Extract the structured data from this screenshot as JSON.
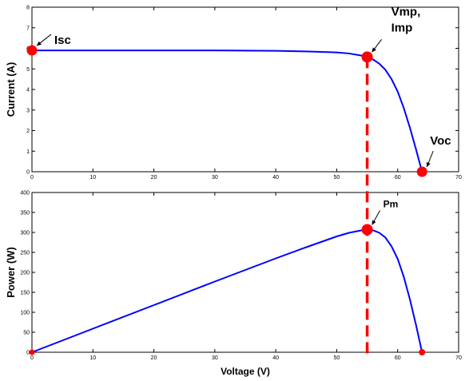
{
  "chart_data": [
    {
      "type": "line",
      "name": "iv-curve",
      "xlabel": "",
      "ylabel": "Current (A)",
      "xlim": [
        0,
        70
      ],
      "ylim": [
        0,
        8
      ],
      "x_ticks": [
        "0",
        "10",
        "20",
        "30",
        "40",
        "50",
        "60",
        "70"
      ],
      "y_ticks": [
        "0",
        "1",
        "2",
        "3",
        "4",
        "5",
        "6",
        "7",
        "8"
      ],
      "grid": false,
      "series": [
        {
          "color": "#0000ff",
          "x": [
            0,
            10,
            20,
            30,
            40,
            45,
            50,
            52,
            54,
            55,
            56,
            57,
            58,
            59,
            60,
            61,
            62,
            63,
            64
          ],
          "y": [
            5.9,
            5.9,
            5.9,
            5.9,
            5.88,
            5.85,
            5.8,
            5.75,
            5.65,
            5.58,
            5.45,
            5.25,
            4.95,
            4.5,
            3.9,
            3.1,
            2.15,
            1.1,
            0
          ]
        }
      ],
      "points": [
        {
          "label": "Isc",
          "x": 0,
          "y": 5.9
        },
        {
          "label": "Vmp,\nImp",
          "x": 55,
          "y": 5.58
        },
        {
          "label": "Voc",
          "x": 64,
          "y": 0
        }
      ]
    },
    {
      "type": "line",
      "name": "pv-curve",
      "xlabel": "Voltage (V)",
      "ylabel": "Power (W)",
      "xlim": [
        0,
        70
      ],
      "ylim": [
        0,
        400
      ],
      "x_ticks": [
        "0",
        "10",
        "20",
        "30",
        "40",
        "50",
        "60",
        "70"
      ],
      "y_ticks": [
        "0",
        "50",
        "100",
        "150",
        "200",
        "250",
        "300",
        "350",
        "400"
      ],
      "grid": false,
      "series": [
        {
          "color": "#0000ff",
          "x": [
            0,
            10,
            20,
            30,
            40,
            45,
            50,
            52,
            54,
            55,
            56,
            57,
            58,
            59,
            60,
            61,
            62,
            63,
            64
          ],
          "y": [
            0,
            59,
            118,
            177,
            235,
            263,
            290,
            299,
            305,
            307,
            305,
            299,
            287,
            265,
            234,
            189,
            133,
            69,
            0
          ]
        }
      ],
      "points": [
        {
          "label": "",
          "x": 0,
          "y": 0
        },
        {
          "label": "Pm",
          "x": 55,
          "y": 307
        },
        {
          "label": "",
          "x": 64,
          "y": 0
        }
      ]
    }
  ],
  "colors": {
    "curve": "#0000ff",
    "marker": "#ff0000",
    "guide": "#ff0000",
    "axes": "#000000"
  }
}
